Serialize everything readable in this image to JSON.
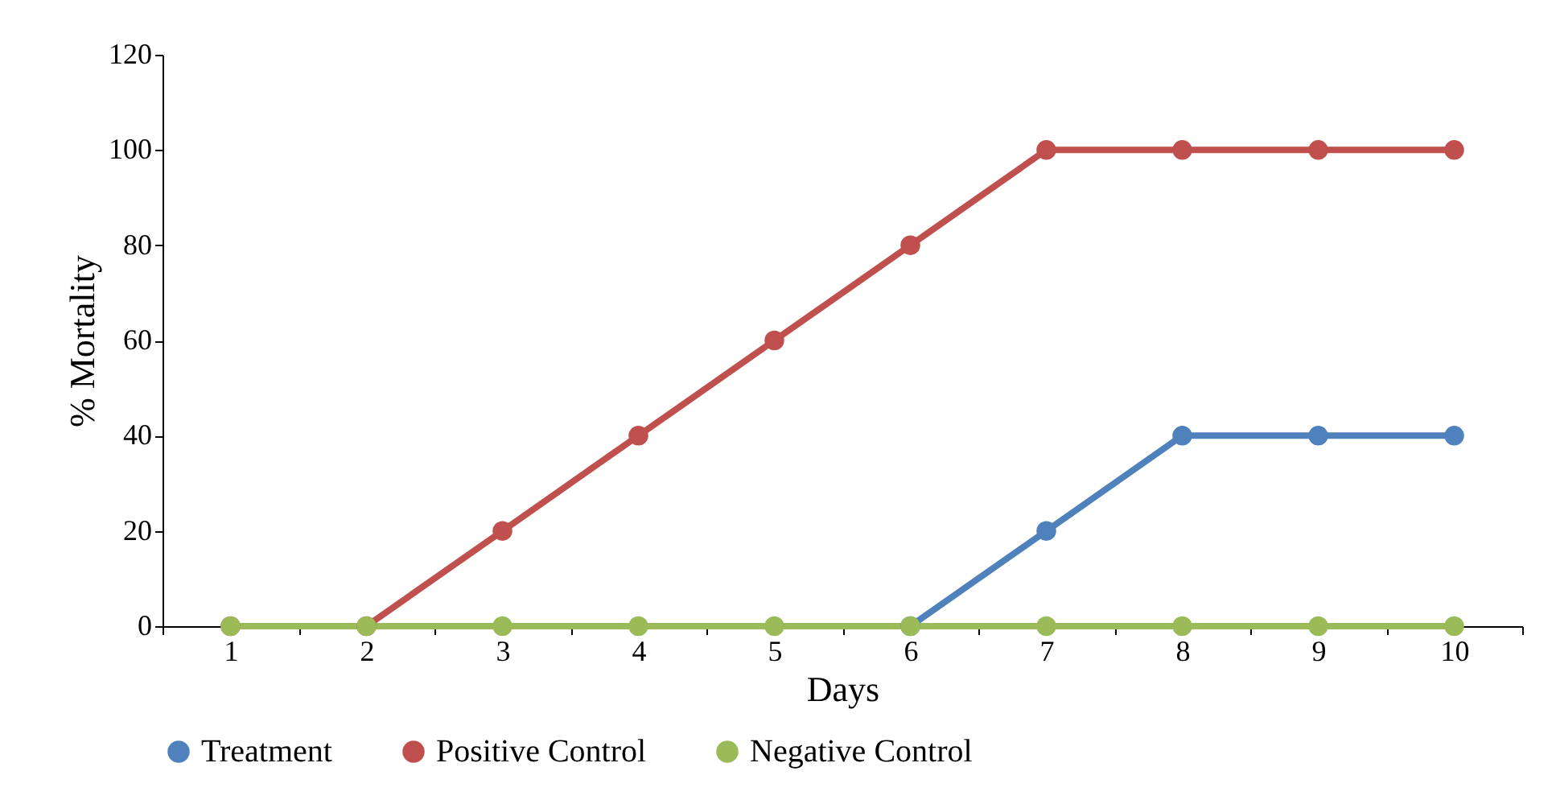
{
  "chart_data": {
    "type": "line",
    "xlabel": "Days",
    "ylabel": "% Mortality",
    "categories": [
      "1",
      "2",
      "3",
      "4",
      "5",
      "6",
      "7",
      "8",
      "9",
      "10"
    ],
    "series": [
      {
        "name": "Treatment",
        "color": "#4f81bd",
        "values": [
          null,
          null,
          null,
          null,
          null,
          0,
          20,
          40,
          40,
          40
        ]
      },
      {
        "name": "Positive Control",
        "color": "#c0504d",
        "values": [
          0,
          0,
          20,
          40,
          60,
          80,
          100,
          100,
          100,
          100
        ]
      },
      {
        "name": "Negative Control",
        "color": "#9bbb59",
        "values": [
          0,
          0,
          0,
          0,
          0,
          0,
          0,
          0,
          0,
          0
        ]
      }
    ],
    "ylim": [
      0,
      120
    ],
    "yticks": [
      0,
      20,
      40,
      60,
      80,
      100,
      120
    ],
    "grid": false,
    "legend": "bottom",
    "marker": "circle",
    "line_style": "solid"
  }
}
